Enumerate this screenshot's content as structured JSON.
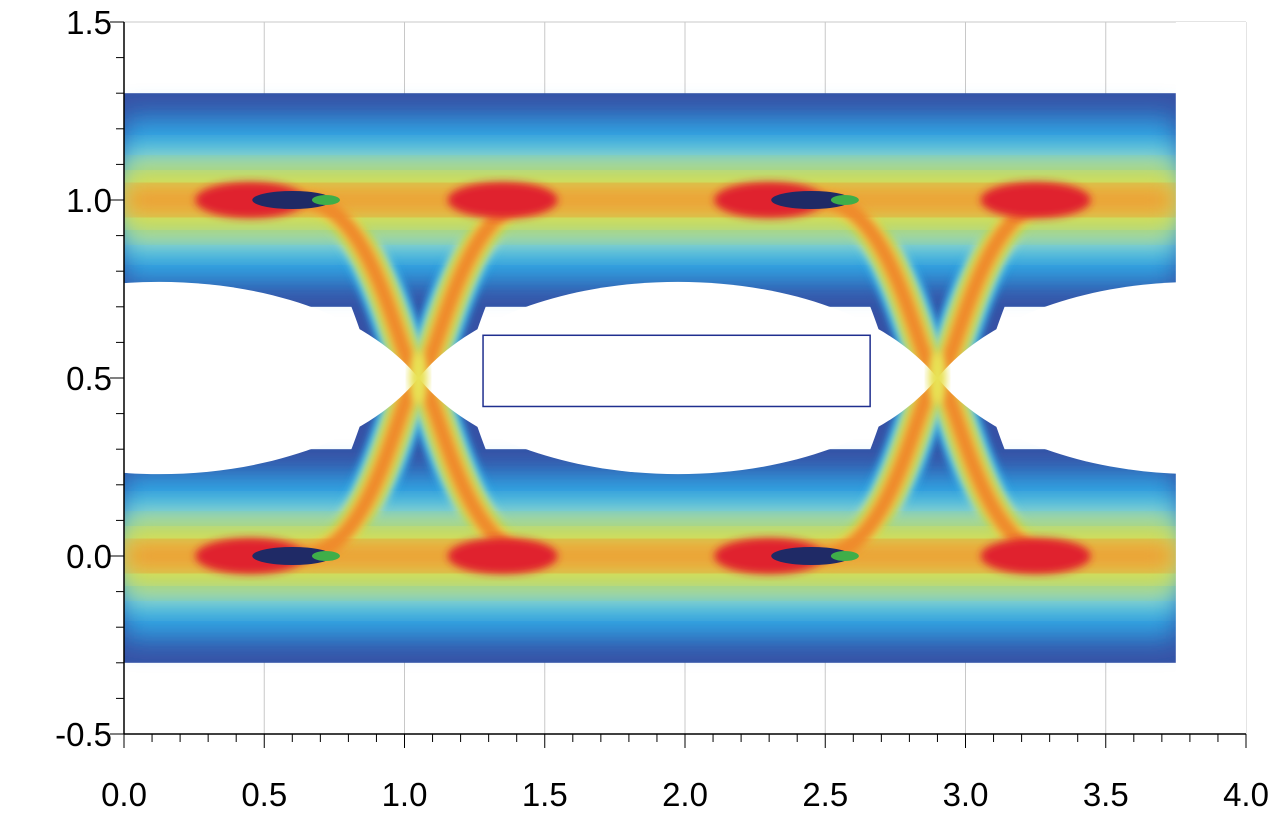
{
  "chart_data": {
    "type": "heatmap",
    "title": "",
    "xlabel": "",
    "ylabel": "",
    "xlim": [
      0.0,
      4.0
    ],
    "ylim": [
      -0.5,
      1.5
    ],
    "x_ticks": [
      0.0,
      0.5,
      1.0,
      1.5,
      2.0,
      2.5,
      3.0,
      3.5,
      4.0
    ],
    "x_tick_labels": [
      "0.0",
      "0.5",
      "1.0",
      "1.5",
      "2.0",
      "2.5",
      "3.0",
      "3.5",
      "4.0"
    ],
    "y_ticks": [
      -0.5,
      0.0,
      0.5,
      1.0,
      1.5
    ],
    "y_tick_labels": [
      "-0.5",
      "0.0",
      "0.5",
      "1.0",
      "1.5"
    ],
    "grid": true,
    "data_x_range": [
      0.0,
      3.75
    ],
    "levels": [
      0.0,
      1.0
    ],
    "crossings_x": [
      1.05,
      2.9
    ],
    "crossing_y": 0.5,
    "eye_mask": {
      "x0": 1.28,
      "x1": 2.66,
      "y0": 0.42,
      "y1": 0.62,
      "color": "#1f2f8f"
    },
    "colormap": [
      "#3651a5",
      "#2f8fd6",
      "#37b7ea",
      "#8fd3ea",
      "#b6e0b8",
      "#a6d25f",
      "#3fae49",
      "#e8e255",
      "#f7c429",
      "#ef8a2c",
      "#e0212f",
      "#e0176a",
      "#f4b3c9",
      "#1f2a66",
      "#000000"
    ]
  }
}
